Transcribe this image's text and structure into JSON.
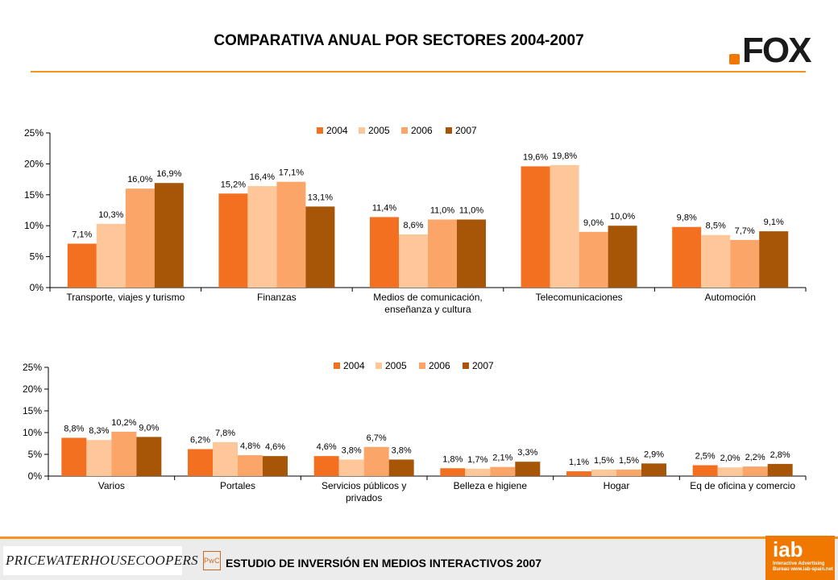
{
  "title": "COMPARATIVA ANUAL POR SECTORES 2004-2007",
  "logo_fox": "FOX",
  "footer": {
    "text": "ESTUDIO DE INVERSIÓN EN MEDIOS INTERACTIVOS 2007",
    "pwc_logo": "PRICEWATERHOUSECOOPERS",
    "pwc_seal": "PwC",
    "iab_logo": "iab",
    "iab_tagline_1": "Interactive Advertising",
    "iab_tagline_2": "Bureau www.iab-spain.net"
  },
  "colors": {
    "2004": "#f37021",
    "2005": "#fdc79a",
    "2006": "#fba668",
    "2007": "#a75608",
    "accent": "#f7941d"
  },
  "chart_data": [
    {
      "type": "bar",
      "series_names": [
        "2004",
        "2005",
        "2006",
        "2007"
      ],
      "categories": [
        [
          "Transporte, viajes y turismo"
        ],
        [
          "Finanzas"
        ],
        [
          "Medios de comunicación,",
          "enseñanza y cultura"
        ],
        [
          "Telecomunicaciones"
        ],
        [
          "Automoción"
        ]
      ],
      "series": [
        {
          "name": "2004",
          "values": [
            7.1,
            15.2,
            11.4,
            19.6,
            9.8
          ]
        },
        {
          "name": "2005",
          "values": [
            10.3,
            16.4,
            8.6,
            19.8,
            8.5
          ]
        },
        {
          "name": "2006",
          "values": [
            16.0,
            17.1,
            11.0,
            9.0,
            7.7
          ]
        },
        {
          "name": "2007",
          "values": [
            16.9,
            13.1,
            11.0,
            10.0,
            9.1
          ]
        }
      ],
      "labels": [
        [
          "7,1%",
          "15,2%",
          "11,4%",
          "19,6%",
          "9,8%"
        ],
        [
          "10,3%",
          "16,4%",
          "8,6%",
          "19,8%",
          "8,5%"
        ],
        [
          "16,0%",
          "17,1%",
          "11,0%",
          "9,0%",
          "7,7%"
        ],
        [
          "16,9%",
          "13,1%",
          "11,0%",
          "10,0%",
          "9,1%"
        ]
      ],
      "yticks": [
        "0%",
        "5%",
        "10%",
        "15%",
        "20%",
        "25%"
      ],
      "ylim": [
        0,
        25
      ],
      "legend": "top",
      "grid": false
    },
    {
      "type": "bar",
      "series_names": [
        "2004",
        "2005",
        "2006",
        "2007"
      ],
      "categories": [
        [
          "Varios"
        ],
        [
          "Portales"
        ],
        [
          "Servicios públicos y",
          "privados"
        ],
        [
          "Belleza e higiene"
        ],
        [
          "Hogar"
        ],
        [
          "Eq de oficina y comercio"
        ]
      ],
      "series": [
        {
          "name": "2004",
          "values": [
            8.8,
            6.2,
            4.6,
            1.8,
            1.1,
            2.5
          ]
        },
        {
          "name": "2005",
          "values": [
            8.3,
            7.8,
            3.8,
            1.7,
            1.5,
            2.0
          ]
        },
        {
          "name": "2006",
          "values": [
            10.2,
            4.8,
            6.7,
            2.1,
            1.5,
            2.2
          ]
        },
        {
          "name": "2007",
          "values": [
            9.0,
            4.6,
            3.8,
            3.3,
            2.9,
            2.8
          ]
        }
      ],
      "labels": [
        [
          "8,8%",
          "6,2%",
          "4,6%",
          "1,8%",
          "1,1%",
          "2,5%"
        ],
        [
          "8,3%",
          "7,8%",
          "3,8%",
          "1,7%",
          "1,5%",
          "2,0%"
        ],
        [
          "10,2%",
          "4,8%",
          "6,7%",
          "2,1%",
          "1,5%",
          "2,2%"
        ],
        [
          "9,0%",
          "4,6%",
          "3,8%",
          "3,3%",
          "2,9%",
          "2,8%"
        ]
      ],
      "yticks": [
        "0%",
        "5%",
        "10%",
        "15%",
        "20%",
        "25%"
      ],
      "ylim": [
        0,
        25
      ],
      "legend": "top",
      "grid": false
    }
  ]
}
